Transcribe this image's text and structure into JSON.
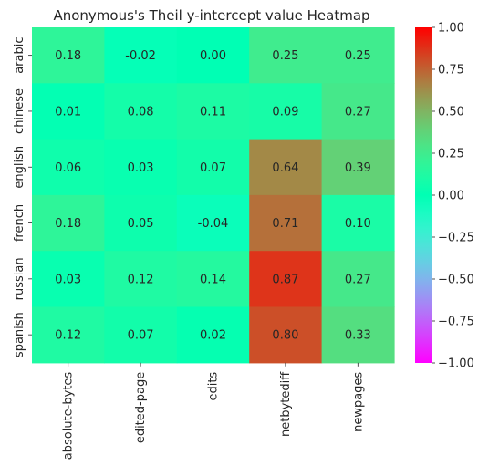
{
  "chart_data": {
    "type": "heatmap",
    "title": "Anonymous's Theil y-intercept value Heatmap",
    "xlabel": "",
    "ylabel": "",
    "x_categories": [
      "absolute-bytes",
      "edited-page",
      "edits",
      "netbytediff",
      "newpages"
    ],
    "y_categories": [
      "arabic",
      "chinese",
      "english",
      "french",
      "russian",
      "spanish"
    ],
    "values": [
      [
        0.18,
        -0.02,
        0.0,
        0.25,
        0.25
      ],
      [
        0.01,
        0.08,
        0.11,
        0.09,
        0.27
      ],
      [
        0.06,
        0.03,
        0.07,
        0.64,
        0.39
      ],
      [
        0.18,
        0.05,
        -0.04,
        0.71,
        0.1
      ],
      [
        0.03,
        0.12,
        0.14,
        0.87,
        0.27
      ],
      [
        0.12,
        0.07,
        0.02,
        0.8,
        0.33
      ]
    ],
    "value_labels": [
      [
        "0.18",
        "-0.02",
        "0.00",
        "0.25",
        "0.25"
      ],
      [
        "0.01",
        "0.08",
        "0.11",
        "0.09",
        "0.27"
      ],
      [
        "0.06",
        "0.03",
        "0.07",
        "0.64",
        "0.39"
      ],
      [
        "0.18",
        "0.05",
        "-0.04",
        "0.71",
        "0.10"
      ],
      [
        "0.03",
        "0.12",
        "0.14",
        "0.87",
        "0.27"
      ],
      [
        "0.12",
        "0.07",
        "0.02",
        "0.80",
        "0.33"
      ]
    ],
    "colormap": "rainbow",
    "vmin": -1.0,
    "vmax": 1.0,
    "colorbar_ticks": [
      1.0,
      0.75,
      0.5,
      0.25,
      0.0,
      -0.25,
      -0.5,
      -0.75,
      -1.0
    ],
    "colorbar_tick_labels": [
      "1.00",
      "0.75",
      "0.50",
      "0.25",
      "0.00",
      "−0.25",
      "−0.50",
      "−0.75",
      "−1.00"
    ],
    "grid": false,
    "legend": "colorbar-right"
  }
}
